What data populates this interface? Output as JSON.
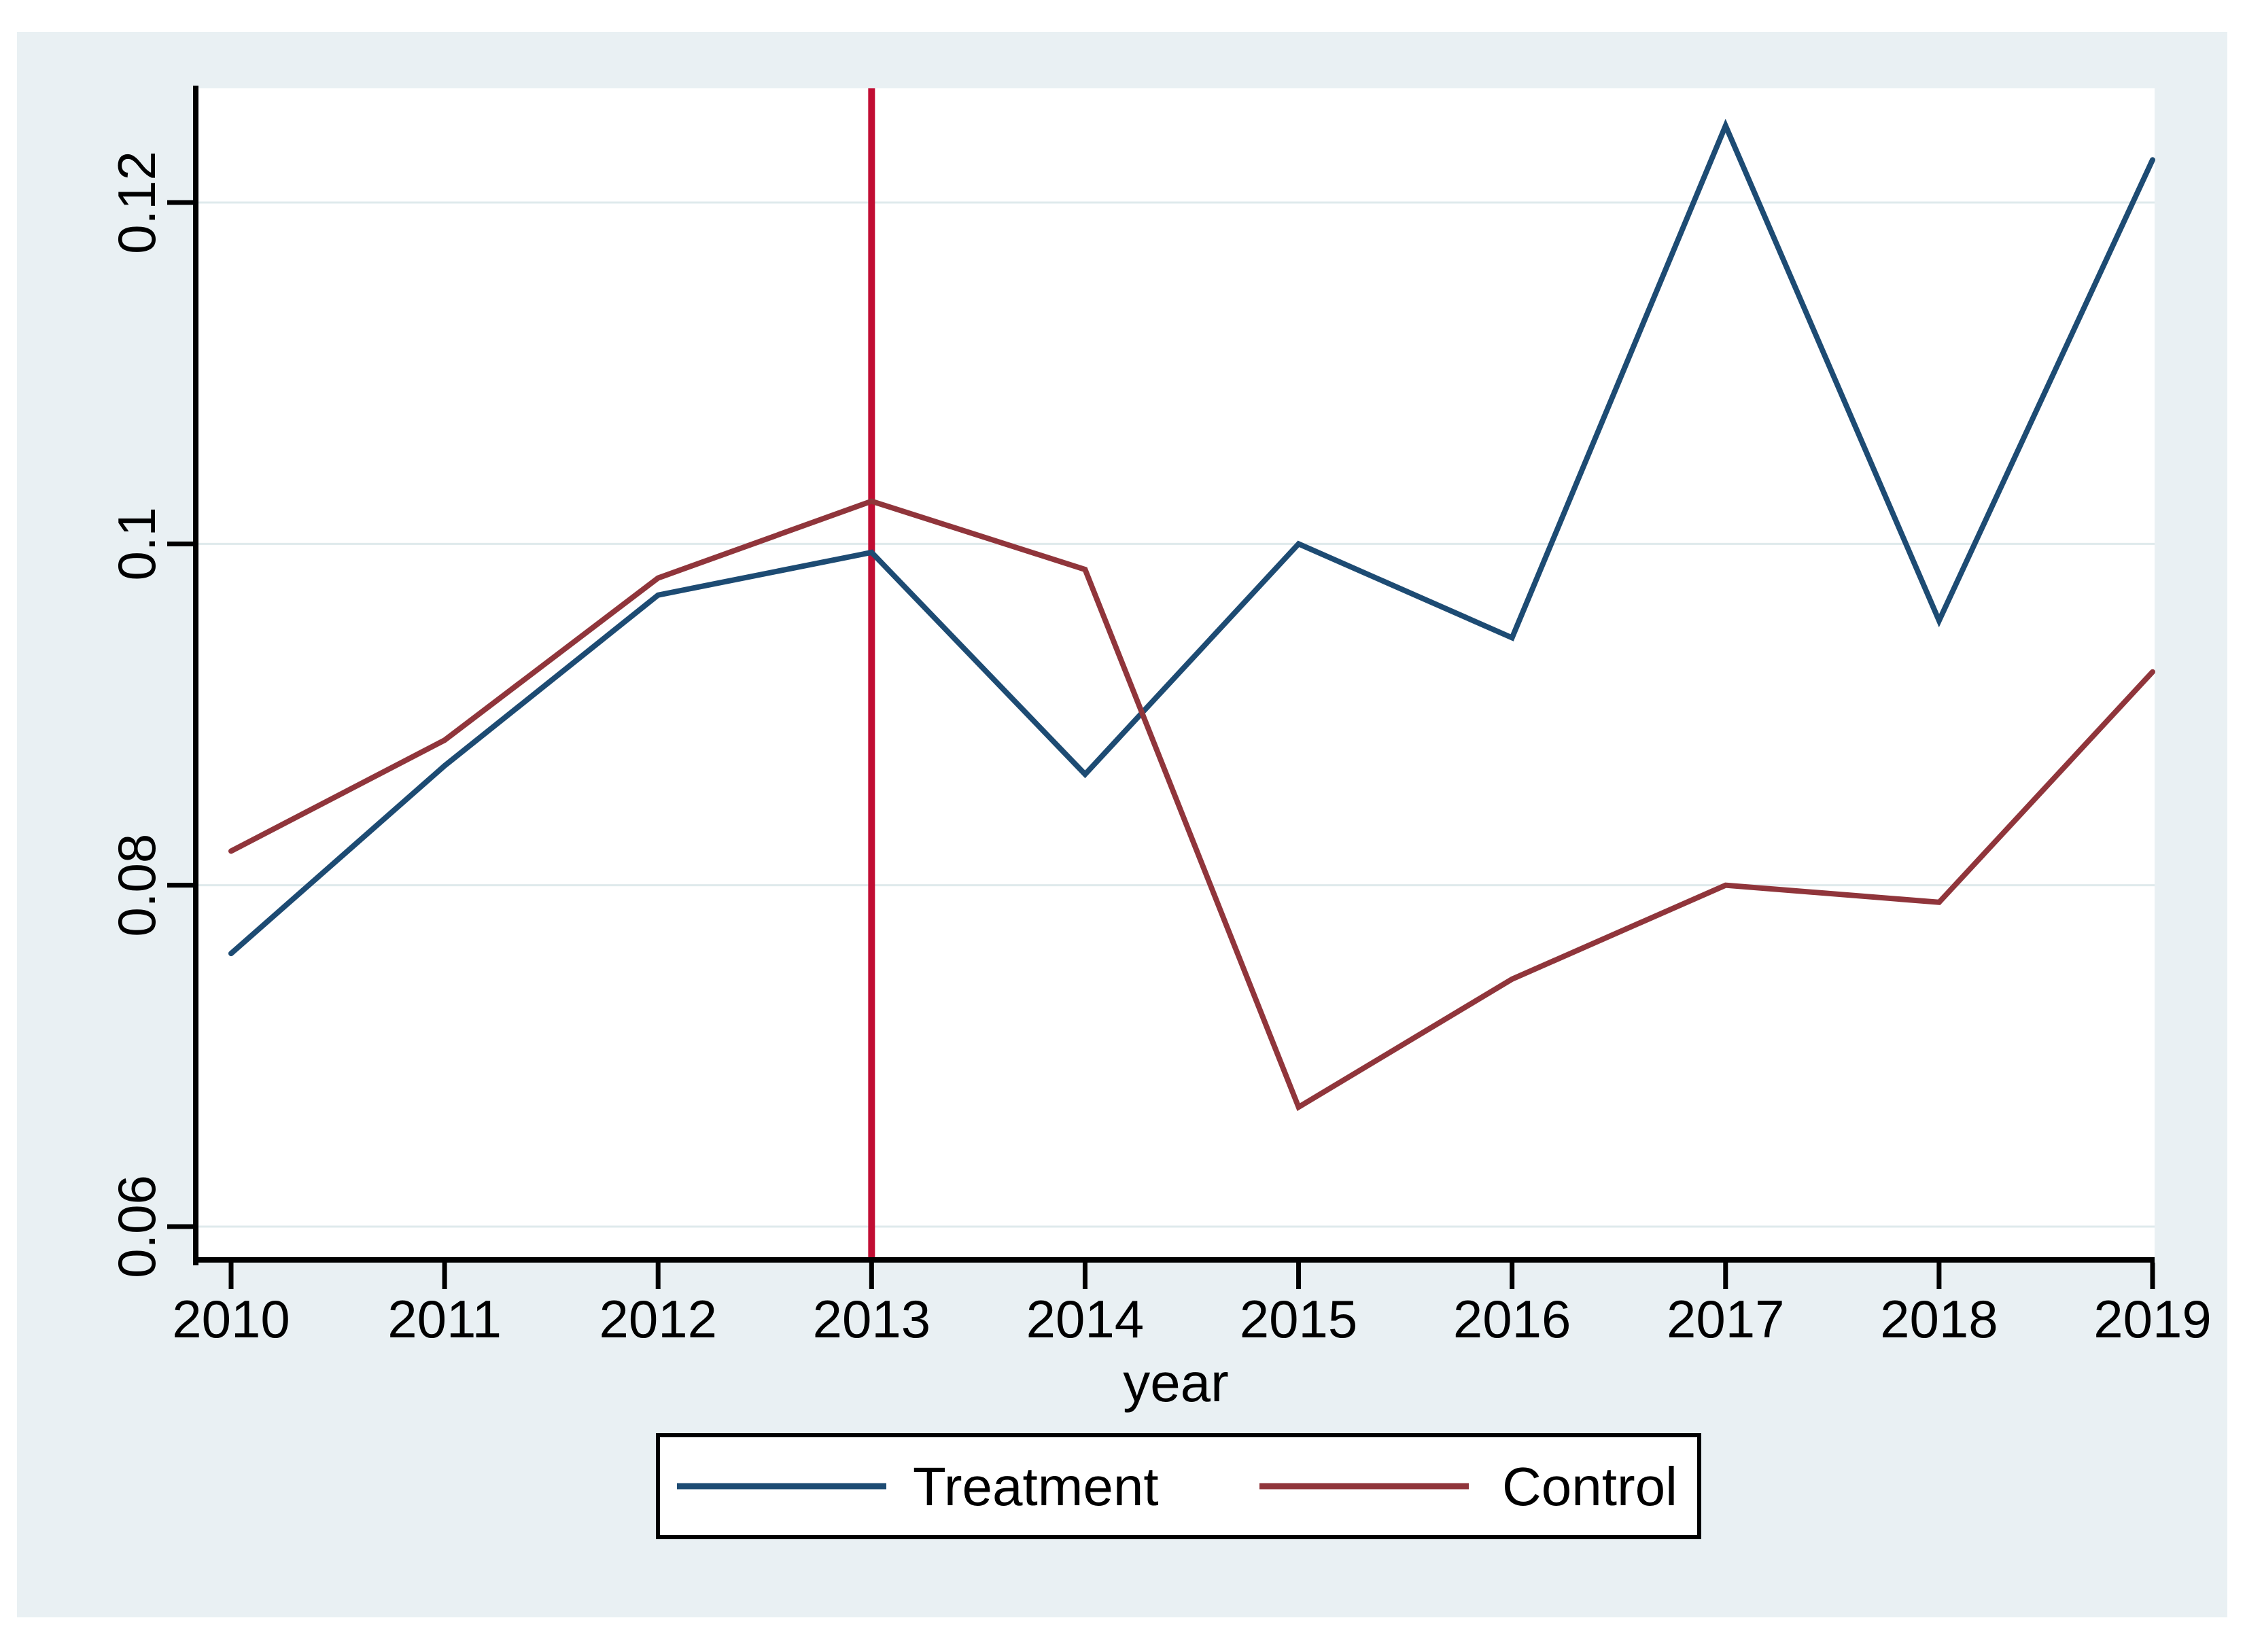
{
  "chart_data": {
    "type": "line",
    "title": "",
    "xlabel": "year",
    "ylabel": "",
    "x": [
      2010,
      2011,
      2012,
      2013,
      2014,
      2015,
      2016,
      2017,
      2018,
      2019
    ],
    "x_tick_labels": [
      "2010",
      "2011",
      "2012",
      "2013",
      "2014",
      "2015",
      "2016",
      "2017",
      "2018",
      "2019"
    ],
    "y_ticks": [
      0.06,
      0.08,
      0.1,
      0.12
    ],
    "y_tick_labels": [
      "0.06",
      "0.08",
      "0.1",
      "0.12"
    ],
    "ylim": [
      0.058,
      0.127
    ],
    "grid": true,
    "legend_position": "bottom-center",
    "series": [
      {
        "name": "Treatment",
        "color": "#1d4b73",
        "values": [
          0.076,
          0.087,
          0.097,
          0.0995,
          0.0865,
          0.1,
          0.0945,
          0.1245,
          0.0955,
          0.1225
        ]
      },
      {
        "name": "Control",
        "color": "#90353b",
        "values": [
          0.082,
          0.0885,
          0.098,
          0.1025,
          0.0985,
          0.067,
          0.0745,
          0.08,
          0.079,
          0.0925
        ]
      }
    ],
    "reference_line": {
      "axis": "x",
      "value": 2013,
      "color": "#c10d33"
    },
    "colors": {
      "panel_bg": "#e9f0f3",
      "plot_bg": "#ffffff",
      "gridline": "#dfeaec",
      "axis": "#000000",
      "legend_border": "#000000",
      "legend_bg": "#ffffff"
    }
  }
}
